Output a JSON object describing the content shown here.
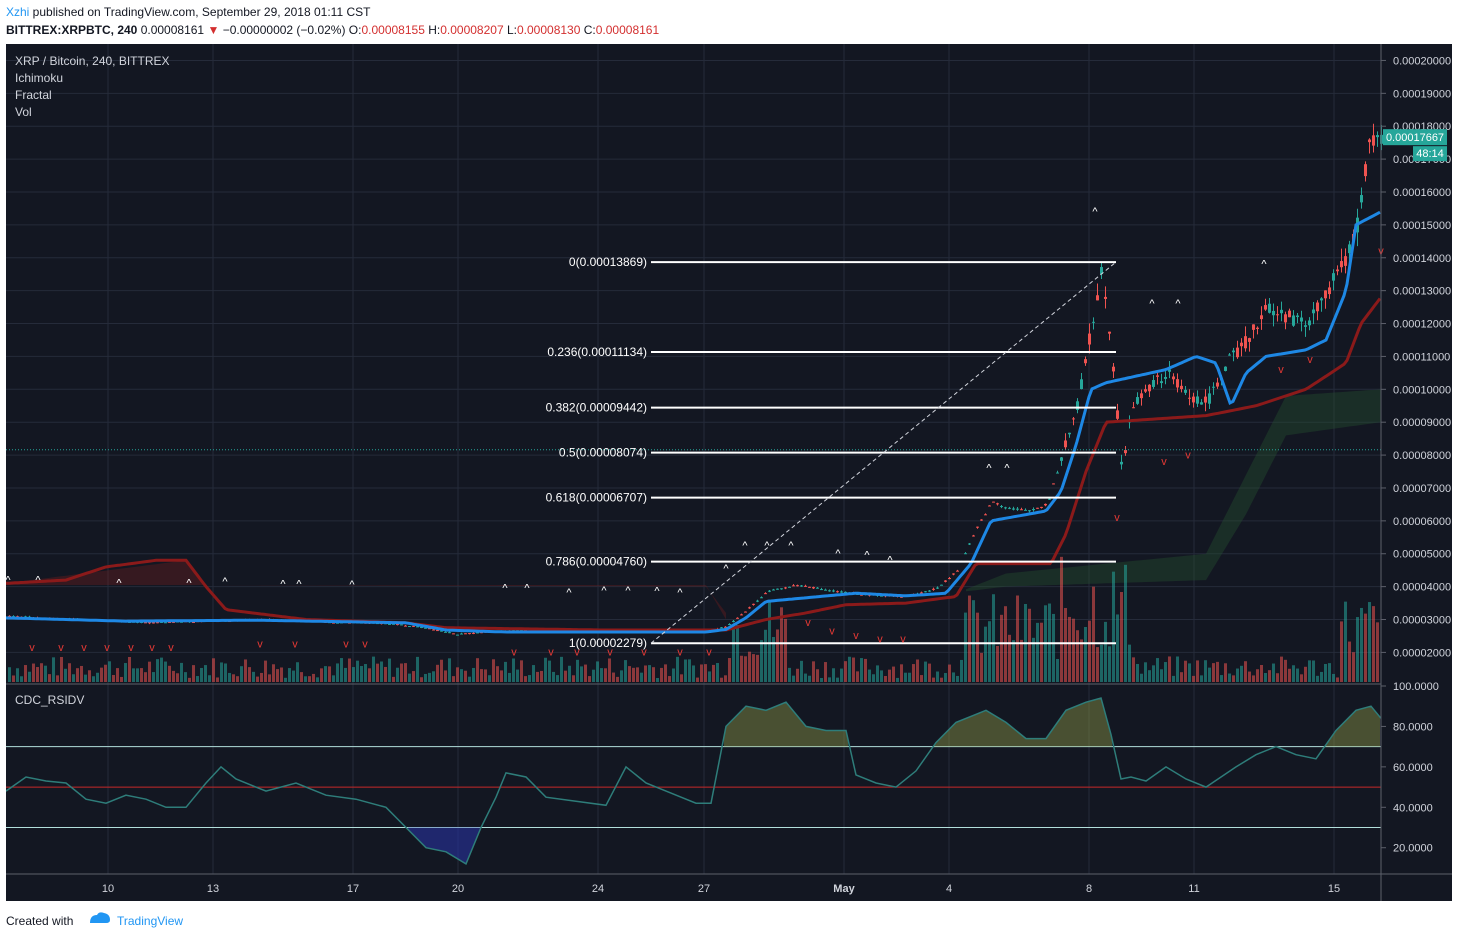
{
  "header": {
    "author": "Xzhi",
    "published": " published on TradingView.com, September 29, 2018 01:11 CST",
    "symbol_line": "BITTREX:XRPBTC, 240",
    "last": "0.00008161",
    "change": "−0.00000002 (−0.02%)",
    "o_label": "O:",
    "o_value": "0.00008155",
    "h_label": "H:",
    "h_value": "0.00008207",
    "l_label": "L:",
    "l_value": "0.00008130",
    "c_label": "C:",
    "c_value": "0.00008161"
  },
  "legend": {
    "title": "XRP / Bitcoin, 240, BITTREX",
    "items": [
      "Ichimoku",
      "Fractal",
      "Vol"
    ]
  },
  "indicator": {
    "title": "CDC_RSIDV"
  },
  "footer": {
    "created_with": "Created with",
    "brand": "TradingView"
  },
  "colors": {
    "background": "#131722",
    "up": "#26a69a",
    "down": "#ef5350",
    "conversion": "#1e88e5",
    "base": "#8b1a1a",
    "fib": "#ffffff",
    "rsi": "#2e7d7a"
  },
  "chart_data": [
    {
      "type": "candlestick",
      "y_axis_ticks": [
        "0.00020000",
        "0.00019000",
        "0.00018000",
        "0.00017000",
        "0.00016000",
        "0.00015000",
        "0.00014000",
        "0.00013000",
        "0.00012000",
        "0.00011000",
        "0.00010000",
        "0.00009000",
        "0.00008000",
        "0.00007000",
        "0.00006000",
        "0.00005000",
        "0.00004000",
        "0.00003000",
        "0.00002000"
      ],
      "ylim": [
        1.1e-05,
        0.000205
      ],
      "x_axis_ticks": [
        "10",
        "13",
        "17",
        "20",
        "24",
        "27",
        "May",
        "4",
        "8",
        "11",
        "15"
      ],
      "last_price_label": "0.00017667",
      "countdown_label": "48:14",
      "fib_levels": [
        {
          "label": "0(0.00013869)",
          "value": 0.00013869
        },
        {
          "label": "0.236(0.00011134)",
          "value": 0.00011134
        },
        {
          "label": "0.382(0.00009442)",
          "value": 9.442e-05
        },
        {
          "label": "0.5(0.00008074)",
          "value": 8.074e-05
        },
        {
          "label": "0.618(0.00006707)",
          "value": 6.707e-05
        },
        {
          "label": "0.786(0.00004760)",
          "value": 4.76e-05
        },
        {
          "label": "1(0.00002279)",
          "value": 2.279e-05
        }
      ],
      "price_path": [
        [
          0,
          3.1e-05
        ],
        [
          40,
          3.05e-05
        ],
        [
          90,
          2.98e-05
        ],
        [
          140,
          2.9e-05
        ],
        [
          200,
          2.95e-05
        ],
        [
          260,
          3e-05
        ],
        [
          320,
          2.92e-05
        ],
        [
          380,
          2.88e-05
        ],
        [
          420,
          2.75e-05
        ],
        [
          450,
          2.55e-05
        ],
        [
          480,
          2.62e-05
        ],
        [
          520,
          2.7e-05
        ],
        [
          560,
          2.68e-05
        ],
        [
          600,
          2.66e-05
        ],
        [
          640,
          2.62e-05
        ],
        [
          700,
          2.62e-05
        ],
        [
          720,
          2.8e-05
        ],
        [
          740,
          3.3e-05
        ],
        [
          760,
          3.85e-05
        ],
        [
          790,
          4.05e-05
        ],
        [
          830,
          3.85e-05
        ],
        [
          860,
          3.75e-05
        ],
        [
          900,
          3.7e-05
        ],
        [
          930,
          3.95e-05
        ],
        [
          950,
          4.5e-05
        ],
        [
          970,
          5.8e-05
        ],
        [
          985,
          6.6e-05
        ],
        [
          1000,
          6.4e-05
        ],
        [
          1020,
          6.3e-05
        ],
        [
          1040,
          6.5e-05
        ],
        [
          1055,
          8e-05
        ],
        [
          1070,
          9.5e-05
        ],
        [
          1085,
          0.00012
        ],
        [
          1095,
          0.000138
        ],
        [
          1105,
          0.00011
        ],
        [
          1115,
          7.5e-05
        ],
        [
          1125,
          9.5e-05
        ],
        [
          1140,
          0.0001
        ],
        [
          1160,
          0.000105
        ],
        [
          1180,
          9.8e-05
        ],
        [
          1200,
          9.6e-05
        ],
        [
          1220,
          0.000108
        ],
        [
          1240,
          0.000115
        ],
        [
          1260,
          0.000125
        ],
        [
          1280,
          0.000122
        ],
        [
          1300,
          0.00012
        ],
        [
          1320,
          0.00013
        ],
        [
          1340,
          0.00014
        ],
        [
          1350,
          0.00015
        ],
        [
          1360,
          0.000172
        ],
        [
          1370,
          0.000178
        ],
        [
          1375,
          0.0001766
        ]
      ],
      "conversion_path": [
        [
          0,
          3.05e-05
        ],
        [
          120,
          2.95e-05
        ],
        [
          250,
          2.98e-05
        ],
        [
          400,
          2.9e-05
        ],
        [
          440,
          2.68e-05
        ],
        [
          500,
          2.62e-05
        ],
        [
          700,
          2.62e-05
        ],
        [
          720,
          2.7e-05
        ],
        [
          740,
          3.05e-05
        ],
        [
          760,
          3.55e-05
        ],
        [
          850,
          3.8e-05
        ],
        [
          900,
          3.72e-05
        ],
        [
          940,
          3.8e-05
        ],
        [
          965,
          4.7e-05
        ],
        [
          985,
          6e-05
        ],
        [
          1040,
          6.3e-05
        ],
        [
          1055,
          6.9e-05
        ],
        [
          1070,
          8.3e-05
        ],
        [
          1085,
          0.0001
        ],
        [
          1100,
          0.000102
        ],
        [
          1160,
          0.000106
        ],
        [
          1190,
          0.00011
        ],
        [
          1210,
          0.000108
        ],
        [
          1225,
          9.5e-05
        ],
        [
          1240,
          0.000105
        ],
        [
          1260,
          0.00011
        ],
        [
          1300,
          0.000112
        ],
        [
          1320,
          0.000115
        ],
        [
          1340,
          0.00013
        ],
        [
          1350,
          0.00015
        ],
        [
          1375,
          0.000154
        ]
      ],
      "base_path": [
        [
          0,
          4.1e-05
        ],
        [
          60,
          4.2e-05
        ],
        [
          100,
          4.6e-05
        ],
        [
          150,
          4.8e-05
        ],
        [
          180,
          4.8e-05
        ],
        [
          200,
          4e-05
        ],
        [
          220,
          3.3e-05
        ],
        [
          300,
          3e-05
        ],
        [
          400,
          2.9e-05
        ],
        [
          440,
          2.75e-05
        ],
        [
          600,
          2.68e-05
        ],
        [
          720,
          2.68e-05
        ],
        [
          760,
          3e-05
        ],
        [
          800,
          3.2e-05
        ],
        [
          840,
          3.45e-05
        ],
        [
          900,
          3.5e-05
        ],
        [
          950,
          3.7e-05
        ],
        [
          970,
          4.7e-05
        ],
        [
          1045,
          4.7e-05
        ],
        [
          1060,
          5.6e-05
        ],
        [
          1080,
          7.5e-05
        ],
        [
          1100,
          9e-05
        ],
        [
          1200,
          9.2e-05
        ],
        [
          1250,
          9.5e-05
        ],
        [
          1300,
          0.0001
        ],
        [
          1340,
          0.000108
        ],
        [
          1355,
          0.00012
        ],
        [
          1375,
          0.000128
        ]
      ]
    },
    {
      "type": "line",
      "name": "CDC_RSIDV",
      "y_axis_ticks": [
        "100.0000",
        "80.0000",
        "60.0000",
        "40.0000",
        "20.0000"
      ],
      "ylim": [
        7,
        100
      ],
      "levels": [
        70,
        50,
        30
      ],
      "values": [
        [
          0,
          48
        ],
        [
          20,
          55
        ],
        [
          40,
          53
        ],
        [
          60,
          52
        ],
        [
          80,
          44
        ],
        [
          100,
          42
        ],
        [
          120,
          46
        ],
        [
          140,
          44
        ],
        [
          160,
          40
        ],
        [
          180,
          40
        ],
        [
          200,
          52
        ],
        [
          215,
          60
        ],
        [
          230,
          54
        ],
        [
          260,
          48
        ],
        [
          290,
          52
        ],
        [
          320,
          46
        ],
        [
          350,
          44
        ],
        [
          380,
          40
        ],
        [
          400,
          30
        ],
        [
          420,
          20
        ],
        [
          440,
          18
        ],
        [
          460,
          12
        ],
        [
          475,
          30
        ],
        [
          490,
          45
        ],
        [
          500,
          57
        ],
        [
          520,
          55
        ],
        [
          540,
          45
        ],
        [
          570,
          43
        ],
        [
          600,
          41
        ],
        [
          620,
          60
        ],
        [
          640,
          52
        ],
        [
          660,
          48
        ],
        [
          690,
          42
        ],
        [
          705,
          42
        ],
        [
          720,
          80
        ],
        [
          740,
          90
        ],
        [
          760,
          88
        ],
        [
          780,
          92
        ],
        [
          800,
          80
        ],
        [
          820,
          78
        ],
        [
          840,
          78
        ],
        [
          850,
          56
        ],
        [
          870,
          52
        ],
        [
          890,
          50
        ],
        [
          910,
          58
        ],
        [
          930,
          72
        ],
        [
          950,
          82
        ],
        [
          980,
          88
        ],
        [
          1000,
          82
        ],
        [
          1020,
          74
        ],
        [
          1040,
          74
        ],
        [
          1060,
          88
        ],
        [
          1080,
          92
        ],
        [
          1095,
          94
        ],
        [
          1105,
          76
        ],
        [
          1115,
          54
        ],
        [
          1125,
          55
        ],
        [
          1140,
          53
        ],
        [
          1160,
          60
        ],
        [
          1180,
          54
        ],
        [
          1200,
          50
        ],
        [
          1230,
          60
        ],
        [
          1250,
          66
        ],
        [
          1270,
          70
        ],
        [
          1290,
          66
        ],
        [
          1310,
          64
        ],
        [
          1330,
          78
        ],
        [
          1350,
          88
        ],
        [
          1365,
          90
        ],
        [
          1375,
          84
        ]
      ]
    }
  ]
}
